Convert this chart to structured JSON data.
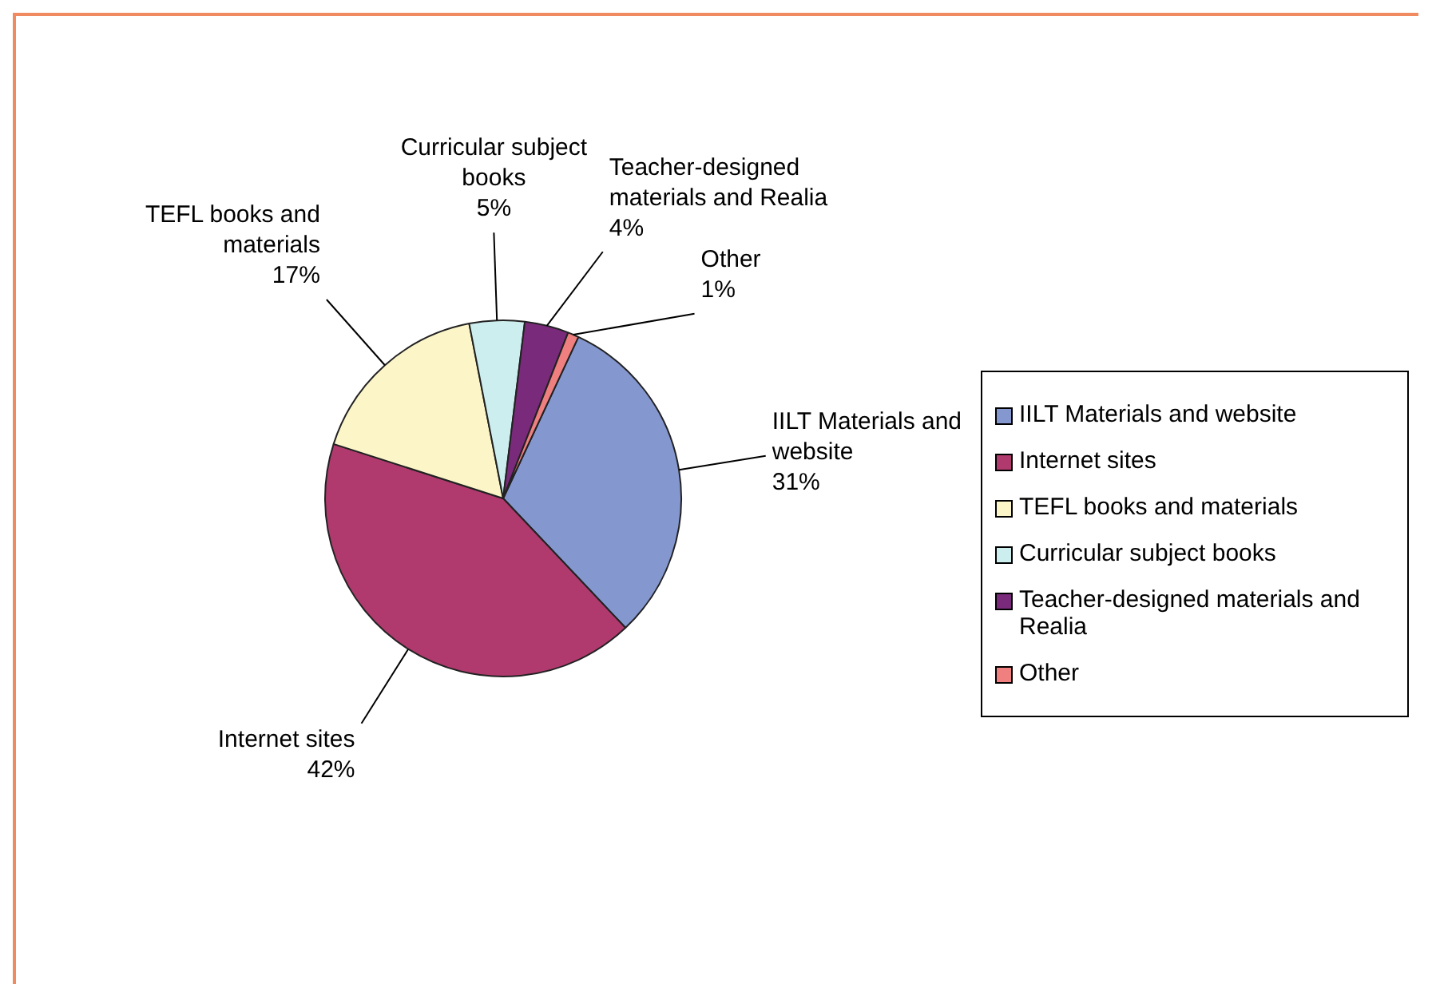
{
  "chart_data": {
    "type": "pie",
    "categories": [
      "IILT Materials and website",
      "Internet sites",
      "TEFL books and materials",
      "Curricular subject books",
      "Teacher-designed materials and Realia",
      "Other"
    ],
    "values": [
      31,
      42,
      17,
      5,
      4,
      1
    ],
    "value_labels": [
      "31%",
      "42%",
      "17%",
      "5%",
      "4%",
      "1%"
    ],
    "colors": [
      "#8497cf",
      "#b03a6e",
      "#fbf5c8",
      "#cdeeee",
      "#7a2a7a",
      "#f08080"
    ],
    "legend": "right"
  }
}
